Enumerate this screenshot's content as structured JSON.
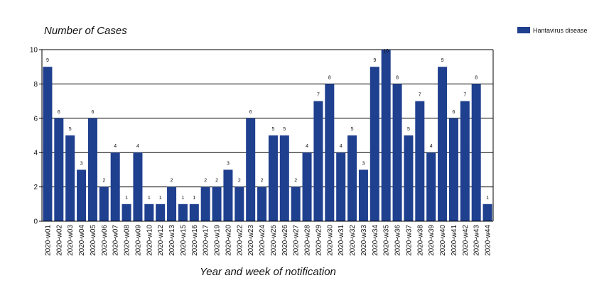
{
  "chart_data": {
    "type": "bar",
    "title": "",
    "ylabel": "Number of Cases",
    "xlabel": "Year and week of notification",
    "ylim": [
      0,
      10
    ],
    "yticks": [
      0,
      2,
      4,
      6,
      8,
      10
    ],
    "grid": "horizontal",
    "legend_position": "top-right",
    "series": [
      {
        "name": "Hantavirus disease",
        "color": "#1f3f8f",
        "values": [
          9,
          6,
          5,
          3,
          6,
          2,
          4,
          1,
          4,
          1,
          1,
          2,
          1,
          1,
          2,
          2,
          3,
          2,
          6,
          2,
          5,
          5,
          2,
          4,
          7,
          8,
          4,
          5,
          3,
          9,
          10,
          8,
          5,
          7,
          4,
          9,
          6,
          7,
          8,
          1
        ]
      }
    ],
    "categories": [
      "2020-w01",
      "2020-w02",
      "2020-w03",
      "2020-w04",
      "2020-w05",
      "2020-w06",
      "2020-w07",
      "2020-w08",
      "2020-w09",
      "2020-w10",
      "2020-w12",
      "2020-w13",
      "2020-w15",
      "2020-w16",
      "2020-w17",
      "2020-w19",
      "2020-w20",
      "2020-w22",
      "2020-w23",
      "2020-w24",
      "2020-w25",
      "2020-w26",
      "2020-w27",
      "2020-w28",
      "2020-w29",
      "2020-w30",
      "2020-w31",
      "2020-w32",
      "2020-w33",
      "2020-w34",
      "2020-w35",
      "2020-w36",
      "2020-w37",
      "2020-w38",
      "2020-w39",
      "2020-w40",
      "2020-w41",
      "2020-w42",
      "2020-w43",
      "2020-w44"
    ]
  }
}
